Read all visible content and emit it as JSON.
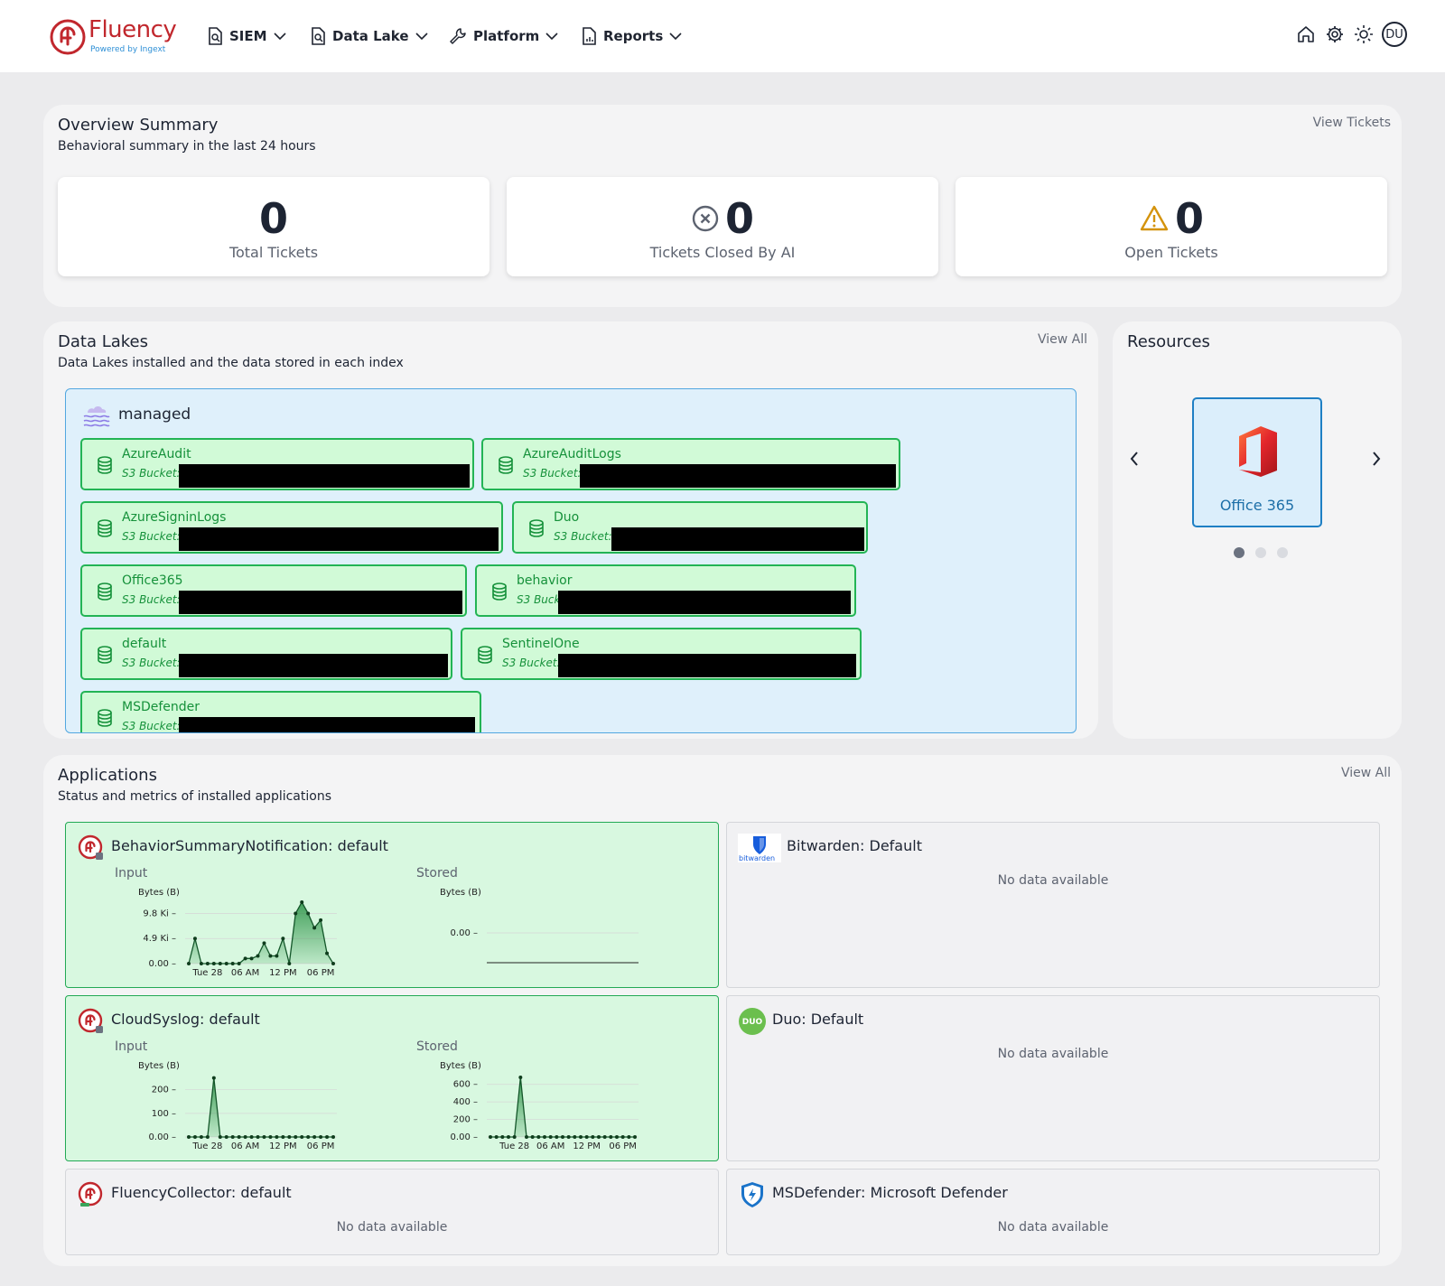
{
  "brand": {
    "name": "Fluency",
    "tagline": "Powered by Ingext",
    "color": "#c1272d"
  },
  "nav": [
    {
      "label": "SIEM",
      "icon": "search-document-icon"
    },
    {
      "label": "Data Lake",
      "icon": "search-document-icon"
    },
    {
      "label": "Platform",
      "icon": "wrench-icon"
    },
    {
      "label": "Reports",
      "icon": "report-icon"
    }
  ],
  "user": {
    "initials": "DU"
  },
  "overview": {
    "title": "Overview Summary",
    "subtitle": "Behavioral summary in the last 24 hours",
    "link": "View Tickets",
    "stats": [
      {
        "value": "0",
        "label": "Total Tickets",
        "icon": ""
      },
      {
        "value": "0",
        "label": "Tickets Closed By AI",
        "icon": "x-circle-icon"
      },
      {
        "value": "0",
        "label": "Open Tickets",
        "icon": "warning-icon"
      }
    ]
  },
  "datalakes": {
    "title": "Data Lakes",
    "subtitle": "Data Lakes installed and the data stored in each index",
    "link": "View All",
    "lake_name": "managed",
    "indices": [
      {
        "name": "AzureAudit",
        "bucket": "S3 Bucket:"
      },
      {
        "name": "AzureAuditLogs",
        "bucket": "S3 Bucket:"
      },
      {
        "name": "AzureSigninLogs",
        "bucket": "S3 Bucket:"
      },
      {
        "name": "Duo",
        "bucket": "S3 Bucket:"
      },
      {
        "name": "Office365",
        "bucket": "S3 Bucket:"
      },
      {
        "name": "behavior",
        "bucket": "S3 Bucket:"
      },
      {
        "name": "default",
        "bucket": "S3 Bucket:"
      },
      {
        "name": "SentinelOne",
        "bucket": "S3 Bucket:"
      },
      {
        "name": "MSDefender",
        "bucket": "S3 Bucket:"
      }
    ]
  },
  "resources": {
    "title": "Resources",
    "items": [
      {
        "label": "Office 365",
        "icon": "office365-icon"
      }
    ],
    "page": 1,
    "pages": 3
  },
  "applications": {
    "title": "Applications",
    "subtitle": "Status and metrics of installed applications",
    "link": "View All",
    "input_label": "Input",
    "stored_label": "Stored",
    "no_data": "No data available",
    "items": [
      {
        "title": "BehaviorSummaryNotification: default",
        "icon": "fluency-app-icon"
      },
      {
        "title": "Bitwarden: Default",
        "icon": "bitwarden-icon"
      },
      {
        "title": "CloudSyslog: default",
        "icon": "fluency-app-icon"
      },
      {
        "title": "Duo: Default",
        "icon": "duo-icon"
      },
      {
        "title": "FluencyCollector: default",
        "icon": "fluency-app-icon"
      },
      {
        "title": "MSDefender: Microsoft Defender",
        "icon": "defender-shield-icon"
      }
    ]
  },
  "chart_data": [
    {
      "type": "area",
      "series": [
        {
          "name": "Input",
          "values": [
            0,
            4900,
            0,
            0,
            0,
            0,
            0,
            0,
            0,
            1000,
            1000,
            1500,
            4000,
            1500,
            1500,
            4900,
            0,
            9800,
            12000,
            9800,
            7000,
            8500,
            2000,
            0
          ]
        }
      ],
      "ylabel": "Bytes (B)",
      "yticks": [
        "0.00",
        "4.9 Ki",
        "9.8 Ki"
      ],
      "ylim": [
        0,
        12000
      ],
      "xticks": [
        {
          "label": "Tue 28",
          "index": 3
        },
        {
          "label": "06 AM",
          "index": 9
        },
        {
          "label": "12 PM",
          "index": 15
        },
        {
          "label": "06 PM",
          "index": 21
        }
      ]
    },
    {
      "type": "area",
      "series": [
        {
          "name": "Stored",
          "values": []
        }
      ],
      "ylabel": "Bytes (B)",
      "yticks": [
        "0.00"
      ],
      "ylim": [
        -1,
        1
      ],
      "xticks": []
    },
    {
      "type": "area",
      "series": [
        {
          "name": "Input",
          "values": [
            0,
            0,
            0,
            0,
            250,
            0,
            0,
            0,
            0,
            0,
            0,
            0,
            0,
            0,
            0,
            0,
            0,
            0,
            0,
            0,
            0,
            0,
            0,
            0
          ]
        }
      ],
      "ylabel": "Bytes (B)",
      "yticks": [
        "0.00",
        "100",
        "200"
      ],
      "ylim": [
        0,
        260
      ],
      "xticks": [
        {
          "label": "Tue 28",
          "index": 3
        },
        {
          "label": "06 AM",
          "index": 9
        },
        {
          "label": "12 PM",
          "index": 15
        },
        {
          "label": "06 PM",
          "index": 21
        }
      ]
    },
    {
      "type": "area",
      "series": [
        {
          "name": "Stored",
          "values": [
            0,
            0,
            0,
            0,
            0,
            680,
            0,
            0,
            0,
            0,
            0,
            0,
            0,
            0,
            0,
            0,
            0,
            0,
            0,
            0,
            0,
            0,
            0,
            0,
            0
          ]
        }
      ],
      "ylabel": "Bytes (B)",
      "yticks": [
        "0.00",
        "200",
        "400",
        "600"
      ],
      "ylim": [
        0,
        700
      ],
      "xticks": [
        {
          "label": "Tue 28",
          "index": 4
        },
        {
          "label": "06 AM",
          "index": 10
        },
        {
          "label": "12 PM",
          "index": 16
        },
        {
          "label": "06 PM",
          "index": 22
        }
      ]
    }
  ]
}
